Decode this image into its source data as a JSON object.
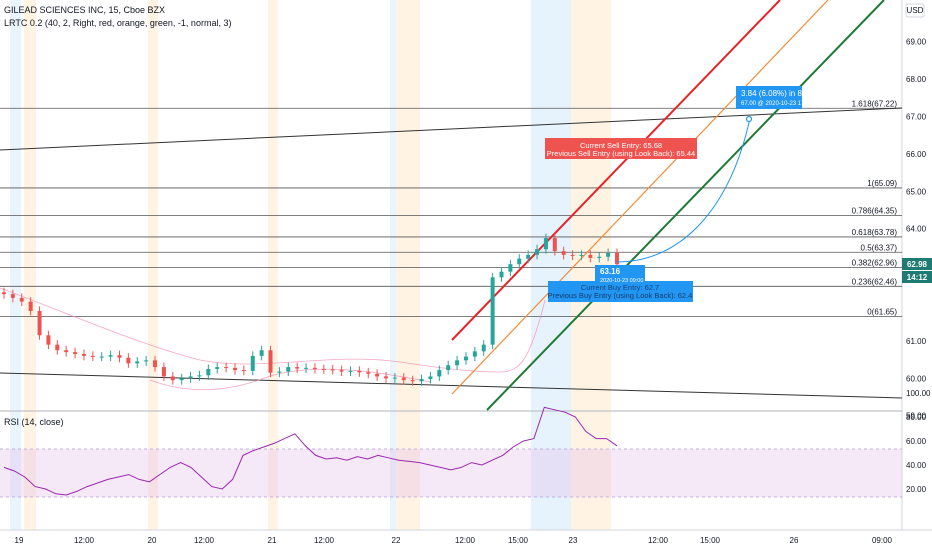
{
  "header": {
    "symbol_line": "GILEAD SCIENCES INC, 15, Cboe BZX",
    "indicator_line": "LRTC 0.2 (40, 2, Right, red, orange, green, -1, normal, 3)"
  },
  "price_axis": {
    "currency": "USD",
    "ticks": [
      "69.00",
      "68.00",
      "67.00",
      "66.00",
      "65.00",
      "64.00",
      "63.00",
      "61.00",
      "60.00",
      "59.00"
    ],
    "last_price": "62.98",
    "countdown": "14:12"
  },
  "time_axis": {
    "ticks": [
      "19",
      "12:00",
      "20",
      "12:00",
      "21",
      "12:00",
      "22",
      "12:00",
      "15:00",
      "23",
      "12:00",
      "15:00",
      "26",
      "09:00"
    ]
  },
  "fib_levels": [
    {
      "label": "1.618(67.22)",
      "price": 67.22
    },
    {
      "label": "1(65.09)",
      "price": 65.09
    },
    {
      "label": "0.786(64.35)",
      "price": 64.35
    },
    {
      "label": "0.618(63.78)",
      "price": 63.78
    },
    {
      "label": "0.5(63.37)",
      "price": 63.37
    },
    {
      "label": "0.382(62.96)",
      "price": 62.96
    },
    {
      "label": "0.236(62.46)",
      "price": 62.46
    },
    {
      "label": "0(61.65)",
      "price": 61.65
    }
  ],
  "annotations": {
    "sell_line1": "Current Sell Entry: 65.68",
    "sell_line2": "Previous Sell Entry (using Look Back): 65.44",
    "buy_line1": "Current Buy Entry: 62.7",
    "buy_line2": "Previous Buy Entry (using Look Back): 62.4",
    "price_label": "63.16",
    "price_time": "2020-10-23 09:00",
    "target_line1": "3.84 (6.08%) in 8h 15m",
    "target_line2": "67.00 @ 2020-10-23  17:15"
  },
  "rsi": {
    "title": "RSI (14, close)",
    "ticks": [
      "100.00",
      "80.00",
      "60.00",
      "40.00",
      "20.00"
    ]
  },
  "colors": {
    "up": "#26a69a",
    "down": "#ef5350",
    "sell_box": "#ef5350",
    "buy_box": "#2196f3",
    "rsi_line": "#9c27b0",
    "upper_channel": "#e5232a",
    "middle_channel": "#f08c3a",
    "lower_channel": "#1e7a35",
    "price_tag": "#1e7a72"
  },
  "chart_data": [
    {
      "type": "candlestick",
      "x_ticks": [
        "19",
        "12:00",
        "20",
        "12:00",
        "21",
        "12:00",
        "22",
        "12:00",
        "15:00",
        "23",
        "12:00",
        "15:00",
        "26",
        "09:00"
      ],
      "ylim": [
        59.0,
        69.5
      ],
      "close_path": [
        62.25,
        62.15,
        62.05,
        61.8,
        61.15,
        60.9,
        60.75,
        60.7,
        60.65,
        60.6,
        60.58,
        60.58,
        60.62,
        60.55,
        60.4,
        60.45,
        60.48,
        60.3,
        60.05,
        59.95,
        60.0,
        60.05,
        60.08,
        60.25,
        60.3,
        60.28,
        60.22,
        60.2,
        60.6,
        60.75,
        60.15,
        60.18,
        60.3,
        60.26,
        60.28,
        60.25,
        60.24,
        60.22,
        60.18,
        60.2,
        60.16,
        60.12,
        60.05,
        60.0,
        60.02,
        59.95,
        59.92,
        59.98,
        60.05,
        60.22,
        60.35,
        60.48,
        60.58,
        60.72,
        60.9,
        62.7,
        62.85,
        63.05,
        63.2,
        63.3,
        63.45,
        63.75,
        63.4,
        63.3,
        63.28,
        63.3,
        63.22,
        63.25,
        63.35,
        63.05
      ]
    },
    {
      "type": "line",
      "title": "RSI (14, close)",
      "ylim": [
        0,
        100
      ],
      "bands": [
        30,
        70
      ],
      "values": [
        38,
        35,
        30,
        22,
        20,
        16,
        15,
        18,
        22,
        25,
        28,
        30,
        32,
        28,
        26,
        32,
        38,
        42,
        38,
        30,
        22,
        20,
        28,
        48,
        52,
        55,
        58,
        62,
        66,
        56,
        48,
        45,
        46,
        44,
        47,
        45,
        48,
        46,
        44,
        43,
        42,
        40,
        38,
        36,
        38,
        42,
        40,
        44,
        48,
        55,
        60,
        62,
        88,
        86,
        84,
        80,
        68,
        62,
        62,
        56
      ]
    }
  ]
}
